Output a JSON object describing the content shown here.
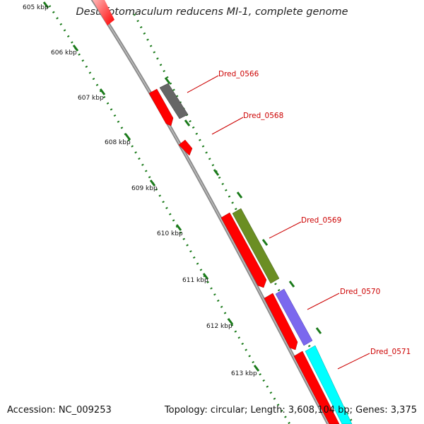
{
  "title": "Desulfotomaculum reducens MI-1, complete genome",
  "footer": {
    "accession": "Accession: NC_009253",
    "summary": "Topology: circular; Length: 3,608,104 bp; Genes: 3,375"
  },
  "colors": {
    "backbone": "#8a8a8a",
    "tick": "#1a7a1a",
    "label": "#cc0000",
    "red_gene": "#ff0000",
    "grey_gene": "#666666",
    "olive_gene": "#6b8e23",
    "purple_gene": "#7b68ee",
    "cyan_gene": "#00ffff"
  },
  "ruler_labels": [
    "605 kbp",
    "606 kbp",
    "607 kbp",
    "608 kbp",
    "609 kbp",
    "610 kbp",
    "611 kbp",
    "612 kbp",
    "613 kbp"
  ],
  "gene_labels": [
    "Dred_0566",
    "Dred_0568",
    "Dred_0569",
    "Dred_0570",
    "Dred_0571"
  ]
}
